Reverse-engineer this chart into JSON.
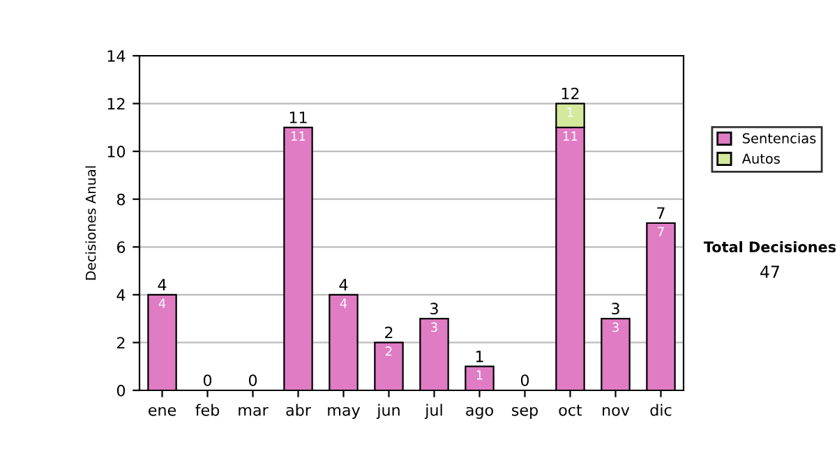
{
  "chart_data": {
    "type": "bar",
    "stacked": true,
    "ylabel": "Decisiones Anual",
    "categories": [
      "ene",
      "feb",
      "mar",
      "abr",
      "may",
      "jun",
      "jul",
      "ago",
      "sep",
      "oct",
      "nov",
      "dic"
    ],
    "series": [
      {
        "name": "Sentencias",
        "color": "#e07cc4",
        "values": [
          4,
          0,
          0,
          11,
          4,
          2,
          3,
          1,
          0,
          11,
          3,
          7
        ],
        "value_labels": [
          "4",
          null,
          null,
          "11",
          "4",
          "2",
          "3",
          "1",
          null,
          "11",
          "3",
          "7"
        ]
      },
      {
        "name": "Autos",
        "color": "#d4e99c",
        "values": [
          null,
          null,
          null,
          null,
          null,
          null,
          null,
          null,
          null,
          1,
          null,
          null
        ],
        "value_labels": [
          null,
          null,
          null,
          null,
          null,
          null,
          null,
          null,
          null,
          "1",
          null,
          null
        ]
      }
    ],
    "totals": [
      "4",
      "0",
      "0",
      "11",
      "4",
      "2",
      "3",
      "1",
      "0",
      "12",
      "3",
      "7"
    ],
    "ylim": [
      0,
      14
    ],
    "yticks": [
      0,
      2,
      4,
      6,
      8,
      10,
      12,
      14
    ],
    "grid": "y",
    "legend": "right",
    "annotations": [
      "Total Decisiones",
      "47"
    ]
  }
}
